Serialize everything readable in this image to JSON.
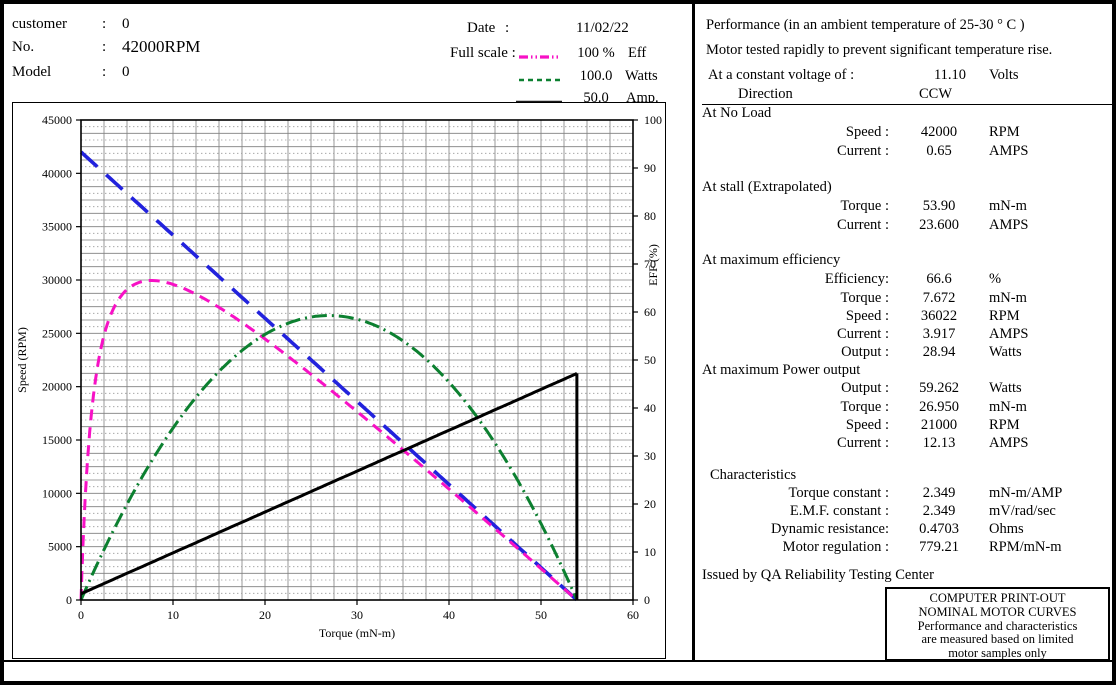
{
  "header": {
    "customer_label": "customer",
    "colon": ":",
    "customer_value": "0",
    "no_label": "No.",
    "no_value": "42000RPM",
    "model_label": "Model",
    "model_value": "0",
    "date_label": "Date",
    "date_value": "11/02/22",
    "full_scale_label": "Full scale :",
    "legend": [
      {
        "name": "efficiency",
        "color": "#f711c5",
        "dash": "9 3 1.5 3 1.5 3",
        "scale": "100  %",
        "unit": "Eff"
      },
      {
        "name": "power-output",
        "color": "#0c8030",
        "dash": "5 4",
        "scale": "100.0",
        "unit": "Watts"
      },
      {
        "name": "current",
        "color": "#1a1a1a",
        "dash": "",
        "scale": "50.0",
        "unit": "Amp."
      }
    ]
  },
  "chart_data": {
    "type": "line",
    "xlabel": "Torque (mN-m)",
    "ylabel_left": "Speed (RPM)",
    "ylabel_right": "EFF (%)",
    "xlim": [
      0,
      60
    ],
    "ylim_left": [
      0,
      45000
    ],
    "ylim_right": [
      0,
      100
    ],
    "x_ticks": [
      0,
      10,
      20,
      30,
      40,
      50,
      60
    ],
    "y_ticks_left": [
      0,
      5000,
      10000,
      15000,
      20000,
      25000,
      30000,
      35000,
      40000,
      45000
    ],
    "y_ticks_right": [
      0,
      10,
      20,
      30,
      40,
      50,
      60,
      70,
      80,
      90,
      100
    ],
    "grid": {
      "x_major_step": 2.5,
      "y_major_step_left": 1250,
      "y_minor_step_left": 625,
      "minor_style": "dotted"
    },
    "motor_params": {
      "no_load_speed_rpm": 42000,
      "no_load_current_a": 0.65,
      "stall_torque_mnm": 53.9,
      "stall_current_a": 23.6,
      "voltage_v": 11.1,
      "full_scale_eff_pct": 100,
      "full_scale_power_w": 100,
      "full_scale_current_a": 50
    },
    "series": [
      {
        "name": "Speed",
        "axis": "left",
        "unit": "RPM",
        "color": "#2222dd",
        "dash": "22 12",
        "width": 3.6,
        "x": [
          0,
          53.9
        ],
        "y": [
          42000,
          0
        ]
      },
      {
        "name": "Efficiency",
        "axis": "right",
        "unit": "%",
        "color": "#f711c5",
        "dash": "11 7",
        "width": 3,
        "x": [
          0,
          0.5,
          1,
          2,
          3,
          5,
          7.672,
          10,
          15,
          20,
          25,
          30,
          35,
          40,
          45,
          50,
          53.9
        ],
        "y": [
          0,
          22.8,
          36.2,
          50.9,
          58.3,
          64.6,
          66.6,
          65.7,
          60.9,
          54.4,
          47.0,
          39.3,
          31.3,
          23.1,
          14.9,
          6.5,
          0
        ]
      },
      {
        "name": "Power output",
        "axis": "right",
        "unit": "Watts",
        "color": "#0c8030",
        "dash": "15 5 2 5",
        "width": 3,
        "x": [
          0,
          2,
          5,
          7.672,
          10,
          15,
          20,
          25,
          26.95,
          30,
          35,
          40,
          45,
          50,
          53.9
        ],
        "y": [
          0,
          8.5,
          19.9,
          28.9,
          35.8,
          47.6,
          55.3,
          59.0,
          59.3,
          58.5,
          54.0,
          45.4,
          32.7,
          15.9,
          0
        ]
      },
      {
        "name": "Current",
        "axis": "right",
        "unit": "AMPS",
        "color": "#000000",
        "dash": "",
        "width": 3,
        "x": [
          0,
          53.9,
          53.9
        ],
        "y": [
          0.65,
          23.6,
          0
        ]
      }
    ]
  },
  "right_panel": {
    "title": "Performance (in an ambient temperature of 25-30 ° C )",
    "subtitle": "Motor tested rapidly to prevent significant temperature rise.",
    "voltage_row": {
      "label": "At a constant voltage of :",
      "value": "11.10",
      "unit": "Volts"
    },
    "direction_row": {
      "label": "Direction",
      "value": "CCW"
    },
    "sections": {
      "no_load": {
        "heading": "At No Load",
        "rows": [
          {
            "label": "Speed  :",
            "value": "42000",
            "unit": "RPM"
          },
          {
            "label": "Current  :",
            "value": "0.65",
            "unit": "AMPS"
          }
        ]
      },
      "stall": {
        "heading": "At stall (Extrapolated)",
        "rows": [
          {
            "label": "Torque  :",
            "value": "53.90",
            "unit": "mN-m"
          },
          {
            "label": "Current  :",
            "value": "23.600",
            "unit": "AMPS"
          }
        ]
      },
      "max_eff": {
        "heading": "At maximum efficiency",
        "rows": [
          {
            "label": "Efficiency:",
            "value": "66.6",
            "unit": "%"
          },
          {
            "label": "Torque   :",
            "value": "7.672",
            "unit": "mN-m"
          },
          {
            "label": "Speed   :",
            "value": "36022",
            "unit": "RPM"
          },
          {
            "label": "Current  :",
            "value": "3.917",
            "unit": "AMPS"
          },
          {
            "label": "Output   :",
            "value": "28.94",
            "unit": "Watts"
          }
        ]
      },
      "max_power": {
        "heading": "At maximum Power output",
        "rows": [
          {
            "label": "Output   :",
            "value": "59.262",
            "unit": "Watts"
          },
          {
            "label": "Torque   :",
            "value": "26.950",
            "unit": "mN-m"
          },
          {
            "label": "Speed   :",
            "value": "21000",
            "unit": "RPM"
          },
          {
            "label": "Current  :",
            "value": "12.13",
            "unit": "AMPS"
          }
        ]
      },
      "characteristics": {
        "heading": "Characteristics",
        "rows": [
          {
            "label": "Torque constant   :",
            "value": "2.349",
            "unit": "mN-m/AMP"
          },
          {
            "label": "E.M.F. constant   :",
            "value": "2.349",
            "unit": "mV/rad/sec"
          },
          {
            "label": "Dynamic resistance:",
            "value": "0.4703",
            "unit": "Ohms"
          },
          {
            "label": "Motor regulation   :",
            "value": "779.21",
            "unit": "RPM/mN-m"
          }
        ]
      }
    },
    "issued_by": "Issued by QA Reliability Testing  Center",
    "stamp_box": {
      "lines": [
        "COMPUTER PRINT-OUT",
        "NOMINAL MOTOR CURVES",
        "Performance and characteristics",
        "are  measured  based  on  limited",
        "motor samples only"
      ]
    }
  }
}
